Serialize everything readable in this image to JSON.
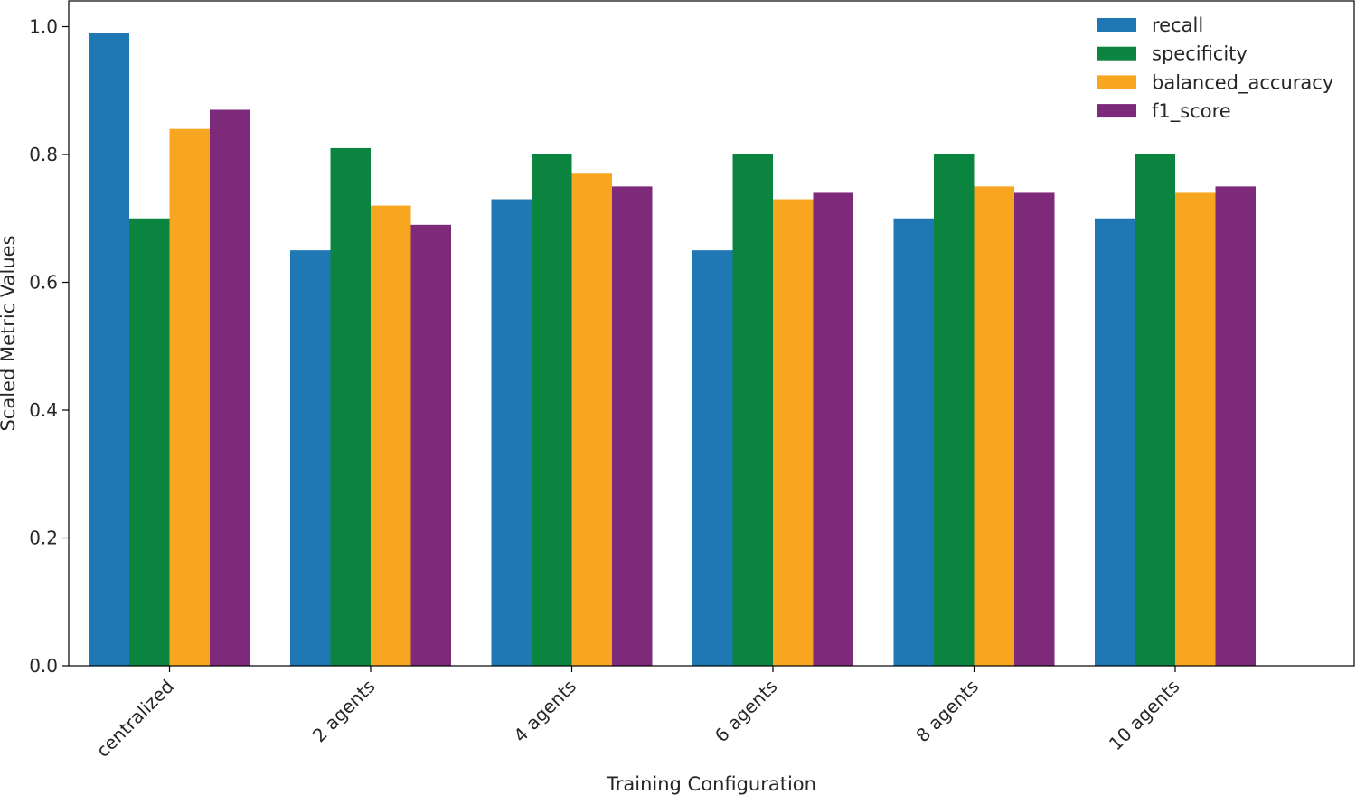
{
  "chart_data": {
    "type": "bar",
    "title": "",
    "xlabel": "Training Configuration",
    "ylabel": "Scaled Metric Values",
    "ylim": [
      0,
      1.04
    ],
    "yticks": [
      "0.0",
      "0.2",
      "0.4",
      "0.6",
      "0.8",
      "1.0"
    ],
    "categories": [
      "centralized",
      "2 agents",
      "4 agents",
      "6 agents",
      "8 agents",
      "10 agents"
    ],
    "series": [
      {
        "name": "recall",
        "color": "#1f77b4",
        "values": [
          0.99,
          0.65,
          0.73,
          0.65,
          0.7,
          0.7
        ]
      },
      {
        "name": "specificity",
        "color": "#0b8440",
        "values": [
          0.7,
          0.81,
          0.8,
          0.8,
          0.8,
          0.8
        ]
      },
      {
        "name": "balanced_accuracy",
        "color": "#f8a51f",
        "values": [
          0.84,
          0.72,
          0.77,
          0.73,
          0.75,
          0.74
        ]
      },
      {
        "name": "f1_score",
        "color": "#7d2a7b",
        "values": [
          0.87,
          0.69,
          0.75,
          0.74,
          0.74,
          0.75
        ]
      }
    ],
    "legend": "top-right",
    "grid": false
  }
}
